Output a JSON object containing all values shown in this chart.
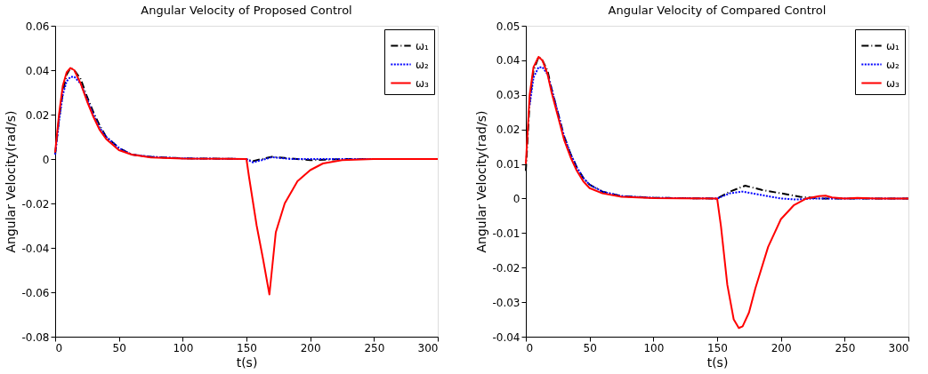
{
  "chart_data": [
    {
      "type": "line",
      "title": "Angular Velocity of Proposed Control",
      "xlabel": "t(s)",
      "ylabel": "Angular Velocity(rad/s)",
      "xlim": [
        0,
        300
      ],
      "ylim": [
        -0.08,
        0.06
      ],
      "xticks": [
        0,
        50,
        100,
        150,
        200,
        250,
        300
      ],
      "yticks": [
        -0.08,
        -0.06,
        -0.04,
        -0.02,
        0,
        0.02,
        0.04,
        0.06
      ],
      "legend": "top right",
      "grid": false,
      "series": [
        {
          "name": "ω₁",
          "color": "#000000",
          "line_style": "dashdot",
          "x": [
            0,
            3,
            6,
            9,
            12,
            15,
            20,
            25,
            30,
            35,
            40,
            50,
            60,
            75,
            100,
            150,
            155,
            162,
            170,
            180,
            200,
            230,
            300
          ],
          "values": [
            0.002,
            0.018,
            0.03,
            0.038,
            0.041,
            0.04,
            0.036,
            0.028,
            0.021,
            0.015,
            0.01,
            0.005,
            0.002,
            0.001,
            0.0003,
            0,
            -0.001,
            0,
            0.001,
            0.0005,
            -0.0005,
            0,
            0
          ]
        },
        {
          "name": "ω₂",
          "color": "#0000ff",
          "line_style": "dotted",
          "x": [
            0,
            3,
            6,
            9,
            12,
            15,
            20,
            25,
            30,
            35,
            40,
            50,
            60,
            75,
            100,
            150,
            155,
            162,
            170,
            185,
            300
          ],
          "values": [
            0.002,
            0.017,
            0.029,
            0.035,
            0.037,
            0.037,
            0.034,
            0.027,
            0.02,
            0.014,
            0.01,
            0.005,
            0.002,
            0.001,
            0.0003,
            0,
            -0.0015,
            -0.0005,
            0.0008,
            0,
            0
          ]
        },
        {
          "name": "ω₃",
          "color": "#ff0000",
          "line_style": "solid",
          "x": [
            0,
            3,
            6,
            9,
            12,
            15,
            20,
            25,
            30,
            35,
            40,
            50,
            60,
            75,
            100,
            150,
            152,
            158,
            163,
            168,
            173,
            180,
            190,
            200,
            210,
            225,
            250,
            300
          ],
          "values": [
            0.003,
            0.02,
            0.033,
            0.039,
            0.041,
            0.04,
            0.034,
            0.026,
            0.019,
            0.013,
            0.009,
            0.004,
            0.002,
            0.0007,
            0.0002,
            0,
            -0.008,
            -0.03,
            -0.045,
            -0.061,
            -0.033,
            -0.02,
            -0.01,
            -0.005,
            -0.002,
            -0.0005,
            0,
            0
          ]
        }
      ]
    },
    {
      "type": "line",
      "title": "Angular Velocity of Compared Control",
      "xlabel": "t(s)",
      "ylabel": "Angular Velocity(rad/s)",
      "xlim": [
        0,
        300
      ],
      "ylim": [
        -0.04,
        0.05
      ],
      "xticks": [
        0,
        50,
        100,
        150,
        200,
        250,
        300
      ],
      "yticks": [
        -0.04,
        -0.03,
        -0.02,
        -0.01,
        0,
        0.01,
        0.02,
        0.03,
        0.04,
        0.05
      ],
      "legend": "top right",
      "grid": false,
      "series": [
        {
          "name": "ω₁",
          "color": "#000000",
          "line_style": "dashdot",
          "x": [
            0,
            3,
            6,
            10,
            13,
            17,
            20,
            25,
            30,
            35,
            40,
            45,
            50,
            60,
            75,
            100,
            150,
            160,
            172,
            185,
            200,
            215,
            230,
            300
          ],
          "values": [
            0.008,
            0.028,
            0.037,
            0.041,
            0.04,
            0.037,
            0.032,
            0.025,
            0.018,
            0.013,
            0.009,
            0.006,
            0.004,
            0.002,
            0.0007,
            0.0002,
            0,
            0.002,
            0.0037,
            0.0025,
            0.0015,
            0.0005,
            0,
            0
          ]
        },
        {
          "name": "ω₂",
          "color": "#0000ff",
          "line_style": "dotted",
          "x": [
            3,
            6,
            10,
            13,
            17,
            20,
            25,
            30,
            35,
            40,
            45,
            50,
            60,
            75,
            100,
            150,
            160,
            170,
            185,
            200,
            212,
            225,
            300
          ],
          "values": [
            0.027,
            0.035,
            0.038,
            0.038,
            0.036,
            0.032,
            0.025,
            0.018,
            0.013,
            0.009,
            0.006,
            0.004,
            0.002,
            0.0007,
            0.0002,
            0,
            0.0015,
            0.002,
            0.001,
            0,
            -0.0003,
            0,
            0
          ]
        },
        {
          "name": "ω₃",
          "color": "#ff0000",
          "line_style": "solid",
          "x": [
            0,
            3,
            6,
            10,
            13,
            17,
            20,
            25,
            30,
            35,
            40,
            45,
            50,
            60,
            75,
            100,
            150,
            153,
            158,
            163,
            167,
            170,
            175,
            180,
            190,
            200,
            210,
            220,
            230,
            235,
            240,
            250,
            260,
            275,
            300
          ],
          "values": [
            0.01,
            0.03,
            0.038,
            0.041,
            0.04,
            0.036,
            0.031,
            0.024,
            0.017,
            0.012,
            0.008,
            0.005,
            0.003,
            0.0015,
            0.0005,
            0.0001,
            0,
            -0.008,
            -0.025,
            -0.035,
            -0.0375,
            -0.037,
            -0.033,
            -0.026,
            -0.014,
            -0.006,
            -0.002,
            0,
            0.0007,
            0.0008,
            0.0003,
            0,
            0.0002,
            0,
            0
          ]
        }
      ]
    }
  ]
}
